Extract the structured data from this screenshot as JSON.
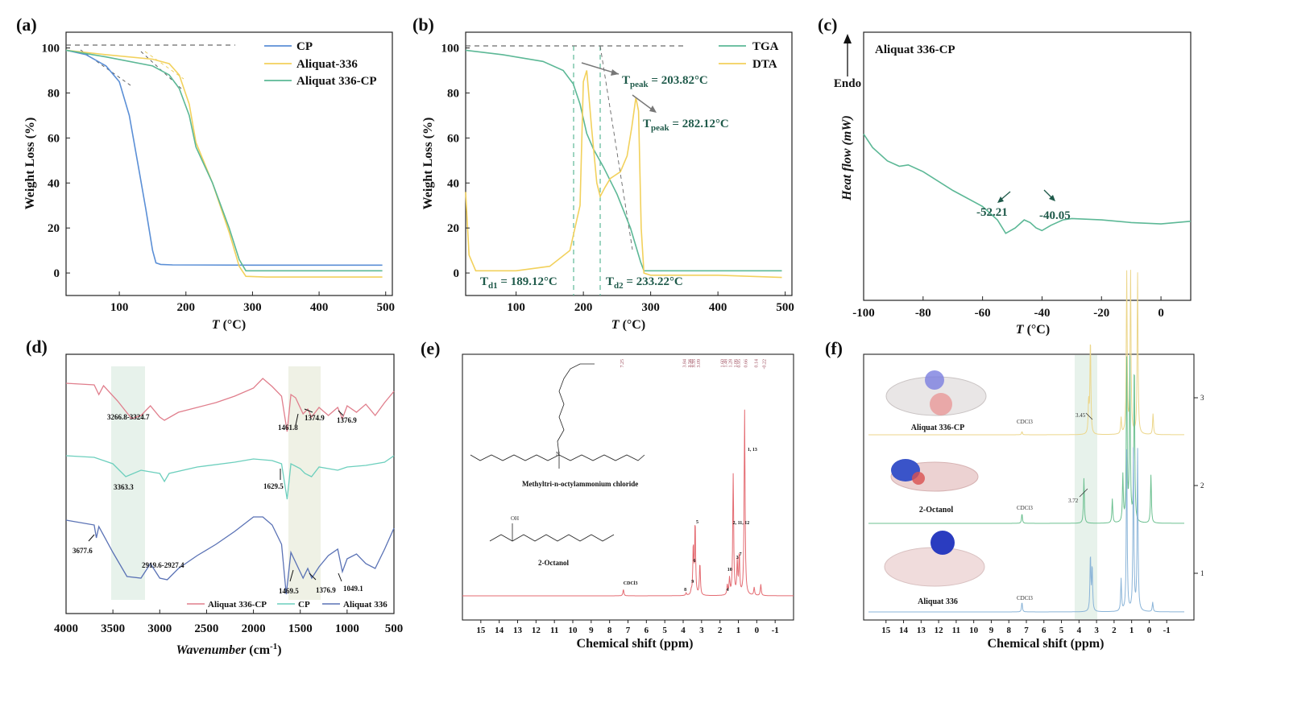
{
  "panels": {
    "a": {
      "label": "(a)"
    },
    "b": {
      "label": "(b)"
    },
    "c": {
      "label": "(c)"
    },
    "d": {
      "label": "(d)"
    },
    "e": {
      "label": "(e)"
    },
    "f": {
      "label": "(f)"
    }
  },
  "colors": {
    "cp": "#5b8fd6",
    "aliquat": "#f2d15c",
    "aliquat_cp": "#5cb896",
    "ftir_red": "#e07e8c",
    "ftir_cyan": "#6ccfbd",
    "ftir_blue": "#5a72b5",
    "nmr_red": "#e46b72",
    "nmr_yellow": "#ecd68a",
    "nmr_green": "#6cc090",
    "nmr_blue": "#8ab4d8"
  },
  "chart_data": [
    {
      "id": "a",
      "type": "line",
      "xlabel": "T (°C)",
      "xlabel_italic": "T",
      "xlabel_unit": "(°C)",
      "ylabel": "Weight  Loss (%)",
      "xlim": [
        20,
        510
      ],
      "ylim": [
        -10,
        107
      ],
      "xticks": [
        "100",
        "200",
        "300",
        "400",
        "500"
      ],
      "xtick_values": [
        100,
        200,
        300,
        400,
        500
      ],
      "yticks": [
        "0",
        "20",
        "40",
        "60",
        "80",
        "100"
      ],
      "ytick_values": [
        0,
        20,
        40,
        60,
        80,
        100
      ],
      "legend_position": "top-right",
      "series": [
        {
          "name": "CP",
          "color": "#5b8fd6",
          "x": [
            20,
            50,
            80,
            100,
            115,
            130,
            140,
            150,
            155,
            162,
            180,
            300,
            400,
            495
          ],
          "y": [
            99,
            97,
            92,
            85,
            70,
            45,
            28,
            10,
            4.5,
            3.8,
            3.6,
            3.5,
            3.5,
            3.5
          ]
        },
        {
          "name": "Aliquat-336",
          "color": "#f2d15c",
          "x": [
            20,
            80,
            150,
            175,
            190,
            205,
            215,
            240,
            265,
            280,
            290,
            320,
            400,
            495
          ],
          "y": [
            99,
            97,
            95,
            93,
            88,
            75,
            58,
            40,
            18,
            3,
            -1.5,
            -1.8,
            -1.8,
            -1.8
          ]
        },
        {
          "name": "Aliquat 336-CP",
          "color": "#5cb896",
          "x": [
            20,
            80,
            150,
            175,
            190,
            205,
            215,
            240,
            265,
            280,
            290,
            320,
            400,
            495
          ],
          "y": [
            99,
            96,
            92,
            88,
            82,
            70,
            56,
            40,
            20,
            6,
            1,
            1,
            1,
            1
          ]
        }
      ]
    },
    {
      "id": "b",
      "type": "line",
      "xlabel": "T (°C)",
      "ylabel": "Weight  Loss (%)",
      "xlim": [
        25,
        510
      ],
      "ylim": [
        -10,
        107
      ],
      "xticks": [
        "100",
        "200",
        "300",
        "400",
        "500"
      ],
      "xtick_values": [
        100,
        200,
        300,
        400,
        500
      ],
      "yticks": [
        "0",
        "20",
        "40",
        "60",
        "80",
        "100"
      ],
      "ytick_values": [
        0,
        20,
        40,
        60,
        80,
        100
      ],
      "legend_position": "top-right",
      "series": [
        {
          "name": "TGA",
          "color": "#5cb896",
          "x": [
            25,
            80,
            140,
            170,
            185,
            195,
            205,
            215,
            230,
            250,
            270,
            285,
            290,
            300,
            400,
            495
          ],
          "y": [
            99,
            97,
            94,
            90,
            84,
            75,
            62,
            55,
            47,
            35,
            20,
            5,
            1,
            1,
            1,
            1
          ]
        },
        {
          "name": "DTA",
          "color": "#f2d15c",
          "x": [
            25,
            30,
            40,
            100,
            150,
            180,
            195,
            200,
            205,
            212,
            220,
            225,
            232,
            240,
            255,
            265,
            272,
            278,
            282,
            286,
            290,
            300,
            400,
            495
          ],
          "y": [
            36,
            8,
            1,
            1,
            3,
            10,
            30,
            85,
            90,
            65,
            40,
            34,
            38,
            42,
            45,
            52,
            65,
            78,
            72,
            20,
            0,
            -1,
            -1,
            -2
          ]
        }
      ],
      "annotations": {
        "tpeak1": {
          "base": "T",
          "sub": "peak",
          "value": " = 203.82°C"
        },
        "tpeak2": {
          "base": "T",
          "sub": "peak",
          "value": " = 282.12°C"
        },
        "td1": {
          "base": "T",
          "sub": "d1",
          "value": " = 189.12°C"
        },
        "td2": {
          "base": "T",
          "sub": "d2",
          "value": " = 233.22°C"
        }
      }
    },
    {
      "id": "c",
      "type": "line",
      "title": "Aliquat 336-CP",
      "xlabel": "T (°C)",
      "ylabel": "Heat flow (mW)",
      "endo_label": "Endo",
      "xlim": [
        -100,
        10
      ],
      "xticks": [
        "-100",
        "-80",
        "-60",
        "-40",
        "-20",
        "0"
      ],
      "xtick_values": [
        -100,
        -80,
        -60,
        -40,
        -20,
        0
      ],
      "series": [
        {
          "name": "Aliquat 336-CP",
          "color": "#5cb896",
          "x": [
            -100,
            -97,
            -92,
            -88,
            -85,
            -80,
            -70,
            -60,
            -55,
            -52.21,
            -49,
            -46,
            -44,
            -42,
            -40.05,
            -37,
            -33,
            -30,
            -20,
            -10,
            0,
            5,
            10
          ],
          "y": [
            0.62,
            0.57,
            0.52,
            0.5,
            0.505,
            0.48,
            0.41,
            0.35,
            0.3,
            0.25,
            0.27,
            0.3,
            0.29,
            0.27,
            0.26,
            0.28,
            0.3,
            0.305,
            0.3,
            0.29,
            0.285,
            0.29,
            0.295
          ]
        }
      ],
      "annotations": {
        "peak1": "-52.21",
        "peak2": "-40.05"
      }
    },
    {
      "id": "d",
      "type": "line",
      "xlabel": "Wavenumber (cm-1)",
      "xlabel_text": "Wavenumber",
      "xlabel_unit": "(cm",
      "xlabel_sup": "-1",
      "xlabel_close": ")",
      "xlim": [
        4000,
        500
      ],
      "x_reversed": true,
      "xticks": [
        "4000",
        "3500",
        "3000",
        "2500",
        "2000",
        "1500",
        "1000",
        "500"
      ],
      "xtick_values": [
        4000,
        3500,
        3000,
        2500,
        2000,
        1500,
        1000,
        500
      ],
      "legend_position": "bottom",
      "series": [
        {
          "name": "Aliquat 336-CP",
          "color": "#e07e8c"
        },
        {
          "name": "CP",
          "color": "#6ccfbd"
        },
        {
          "name": "Aliquat 336",
          "color": "#5a72b5"
        }
      ],
      "annotations": [
        "3266.8-3324.7",
        "1461.8",
        "1374.9",
        "1376.9",
        "3363.3",
        "1629.5",
        "3677.6",
        "2919.6-2927.4",
        "1469.5",
        "1376.9",
        "1049.1"
      ]
    },
    {
      "id": "e",
      "type": "line",
      "xlabel": "Chemical shift (ppm)",
      "xlim": [
        16,
        -2
      ],
      "x_reversed": true,
      "xticks": [
        "15",
        "14",
        "13",
        "12",
        "11",
        "10",
        "9",
        "8",
        "7",
        "6",
        "5",
        "4",
        "3",
        "2",
        "1",
        "0",
        "-1"
      ],
      "xtick_values": [
        15,
        14,
        13,
        12,
        11,
        10,
        9,
        8,
        7,
        6,
        5,
        4,
        3,
        2,
        1,
        0,
        -1
      ],
      "top_peak_labels": [
        "7.25",
        "3.84",
        "3.56",
        "3.45",
        "3.35",
        "3.09",
        "1.60",
        "1.48",
        "1.28",
        "1.06",
        "0.95",
        "0.66",
        "0.14",
        "-0.22"
      ],
      "molecule_labels": [
        "Methyltri-n-octylammonium chloride",
        "2-Octanol"
      ],
      "peak_labels": [
        "CDCl3",
        "5",
        "6",
        "8",
        "9",
        "10",
        "4",
        "2, 11, 12",
        "3",
        "7",
        "1, 13"
      ],
      "series": [
        {
          "name": "NMR",
          "color": "#e46b72"
        }
      ]
    },
    {
      "id": "f",
      "type": "line",
      "xlabel": "Chemical shift (ppm)",
      "xlim": [
        16,
        -2
      ],
      "x_reversed": true,
      "xticks": [
        "15",
        "14",
        "13",
        "12",
        "11",
        "10",
        "9",
        "8",
        "7",
        "6",
        "5",
        "4",
        "3",
        "2",
        "1",
        "0",
        "-1"
      ],
      "xtick_values": [
        15,
        14,
        13,
        12,
        11,
        10,
        9,
        8,
        7,
        6,
        5,
        4,
        3,
        2,
        1,
        0,
        -1
      ],
      "right_ticks": [
        "3",
        "2",
        "1"
      ],
      "series": [
        {
          "name": "Aliquat 336-CP",
          "color": "#ecd68a"
        },
        {
          "name": "2-Octanol",
          "color": "#6cc090"
        },
        {
          "name": "Aliquat 336",
          "color": "#8ab4d8"
        }
      ],
      "annotations": {
        "cdcl": "CDCl3",
        "p1": "3.45",
        "p2": "3.72"
      }
    }
  ]
}
